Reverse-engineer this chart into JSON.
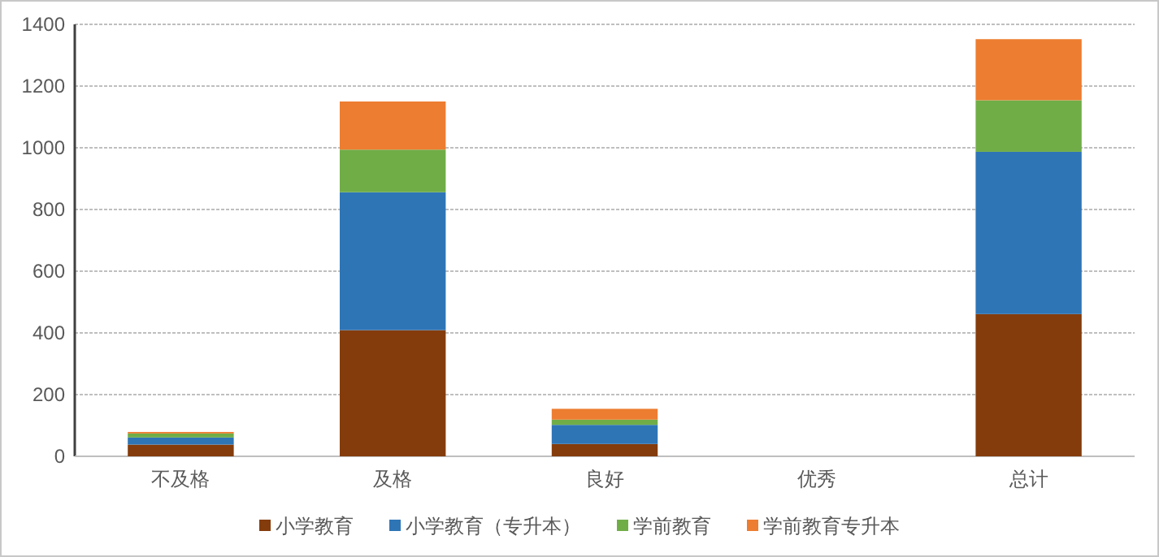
{
  "chart_data": {
    "type": "bar",
    "stacked": true,
    "categories": [
      "不及格",
      "及格",
      "良好",
      "优秀",
      "总计"
    ],
    "series": [
      {
        "name": "小学教育",
        "color": "#843c0c",
        "values": [
          38,
          409,
          40,
          0,
          461
        ]
      },
      {
        "name": "小学教育（专升本）",
        "color": "#2e75b6",
        "values": [
          23,
          447,
          62,
          0,
          526
        ]
      },
      {
        "name": "学前教育",
        "color": "#70ad47",
        "values": [
          13,
          138,
          17,
          0,
          167
        ]
      },
      {
        "name": "学前教育专升本",
        "color": "#ed7d31",
        "values": [
          5,
          156,
          35,
          0,
          198
        ]
      }
    ],
    "ylim": [
      0,
      1400
    ],
    "yticks": [
      0,
      200,
      400,
      600,
      800,
      1000,
      1200,
      1400
    ],
    "grid": "y",
    "legend": "bottom"
  }
}
